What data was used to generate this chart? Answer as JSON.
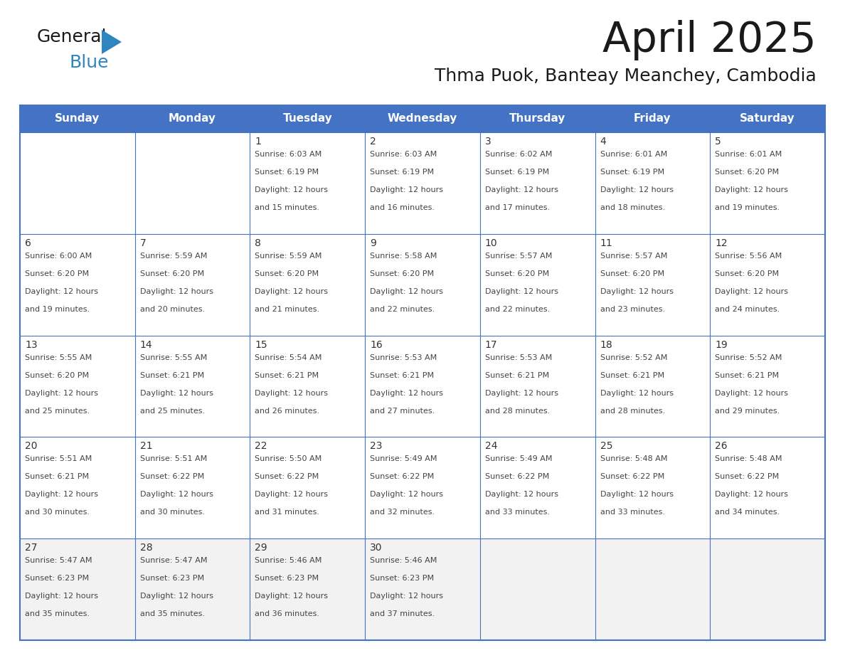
{
  "title": "April 2025",
  "subtitle": "Thma Puok, Banteay Meanchey, Cambodia",
  "days_of_week": [
    "Sunday",
    "Monday",
    "Tuesday",
    "Wednesday",
    "Thursday",
    "Friday",
    "Saturday"
  ],
  "header_bg": "#4472C4",
  "header_text": "#FFFFFF",
  "row_bg_white": "#FFFFFF",
  "row_bg_gray": "#F2F2F2",
  "cell_border": "#4472C4",
  "title_color": "#1a1a1a",
  "subtitle_color": "#1a1a1a",
  "text_color": "#444444",
  "day_num_color": "#333333",
  "logo_color1": "#1a1a1a",
  "logo_color2": "#2E86C1",
  "calendar_data": [
    [
      null,
      null,
      {
        "day": 1,
        "sunrise": "6:03 AM",
        "sunset": "6:19 PM",
        "daylight_suffix": "15 minutes."
      },
      {
        "day": 2,
        "sunrise": "6:03 AM",
        "sunset": "6:19 PM",
        "daylight_suffix": "16 minutes."
      },
      {
        "day": 3,
        "sunrise": "6:02 AM",
        "sunset": "6:19 PM",
        "daylight_suffix": "17 minutes."
      },
      {
        "day": 4,
        "sunrise": "6:01 AM",
        "sunset": "6:19 PM",
        "daylight_suffix": "18 minutes."
      },
      {
        "day": 5,
        "sunrise": "6:01 AM",
        "sunset": "6:20 PM",
        "daylight_suffix": "19 minutes."
      }
    ],
    [
      {
        "day": 6,
        "sunrise": "6:00 AM",
        "sunset": "6:20 PM",
        "daylight_suffix": "19 minutes."
      },
      {
        "day": 7,
        "sunrise": "5:59 AM",
        "sunset": "6:20 PM",
        "daylight_suffix": "20 minutes."
      },
      {
        "day": 8,
        "sunrise": "5:59 AM",
        "sunset": "6:20 PM",
        "daylight_suffix": "21 minutes."
      },
      {
        "day": 9,
        "sunrise": "5:58 AM",
        "sunset": "6:20 PM",
        "daylight_suffix": "22 minutes."
      },
      {
        "day": 10,
        "sunrise": "5:57 AM",
        "sunset": "6:20 PM",
        "daylight_suffix": "22 minutes."
      },
      {
        "day": 11,
        "sunrise": "5:57 AM",
        "sunset": "6:20 PM",
        "daylight_suffix": "23 minutes."
      },
      {
        "day": 12,
        "sunrise": "5:56 AM",
        "sunset": "6:20 PM",
        "daylight_suffix": "24 minutes."
      }
    ],
    [
      {
        "day": 13,
        "sunrise": "5:55 AM",
        "sunset": "6:20 PM",
        "daylight_suffix": "25 minutes."
      },
      {
        "day": 14,
        "sunrise": "5:55 AM",
        "sunset": "6:21 PM",
        "daylight_suffix": "25 minutes."
      },
      {
        "day": 15,
        "sunrise": "5:54 AM",
        "sunset": "6:21 PM",
        "daylight_suffix": "26 minutes."
      },
      {
        "day": 16,
        "sunrise": "5:53 AM",
        "sunset": "6:21 PM",
        "daylight_suffix": "27 minutes."
      },
      {
        "day": 17,
        "sunrise": "5:53 AM",
        "sunset": "6:21 PM",
        "daylight_suffix": "28 minutes."
      },
      {
        "day": 18,
        "sunrise": "5:52 AM",
        "sunset": "6:21 PM",
        "daylight_suffix": "28 minutes."
      },
      {
        "day": 19,
        "sunrise": "5:52 AM",
        "sunset": "6:21 PM",
        "daylight_suffix": "29 minutes."
      }
    ],
    [
      {
        "day": 20,
        "sunrise": "5:51 AM",
        "sunset": "6:21 PM",
        "daylight_suffix": "30 minutes."
      },
      {
        "day": 21,
        "sunrise": "5:51 AM",
        "sunset": "6:22 PM",
        "daylight_suffix": "30 minutes."
      },
      {
        "day": 22,
        "sunrise": "5:50 AM",
        "sunset": "6:22 PM",
        "daylight_suffix": "31 minutes."
      },
      {
        "day": 23,
        "sunrise": "5:49 AM",
        "sunset": "6:22 PM",
        "daylight_suffix": "32 minutes."
      },
      {
        "day": 24,
        "sunrise": "5:49 AM",
        "sunset": "6:22 PM",
        "daylight_suffix": "33 minutes."
      },
      {
        "day": 25,
        "sunrise": "5:48 AM",
        "sunset": "6:22 PM",
        "daylight_suffix": "33 minutes."
      },
      {
        "day": 26,
        "sunrise": "5:48 AM",
        "sunset": "6:22 PM",
        "daylight_suffix": "34 minutes."
      }
    ],
    [
      {
        "day": 27,
        "sunrise": "5:47 AM",
        "sunset": "6:23 PM",
        "daylight_suffix": "35 minutes."
      },
      {
        "day": 28,
        "sunrise": "5:47 AM",
        "sunset": "6:23 PM",
        "daylight_suffix": "35 minutes."
      },
      {
        "day": 29,
        "sunrise": "5:46 AM",
        "sunset": "6:23 PM",
        "daylight_suffix": "36 minutes."
      },
      {
        "day": 30,
        "sunrise": "5:46 AM",
        "sunset": "6:23 PM",
        "daylight_suffix": "37 minutes."
      },
      null,
      null,
      null
    ]
  ],
  "row_colors": [
    "#FFFFFF",
    "#FFFFFF",
    "#FFFFFF",
    "#FFFFFF",
    "#F2F2F2"
  ]
}
